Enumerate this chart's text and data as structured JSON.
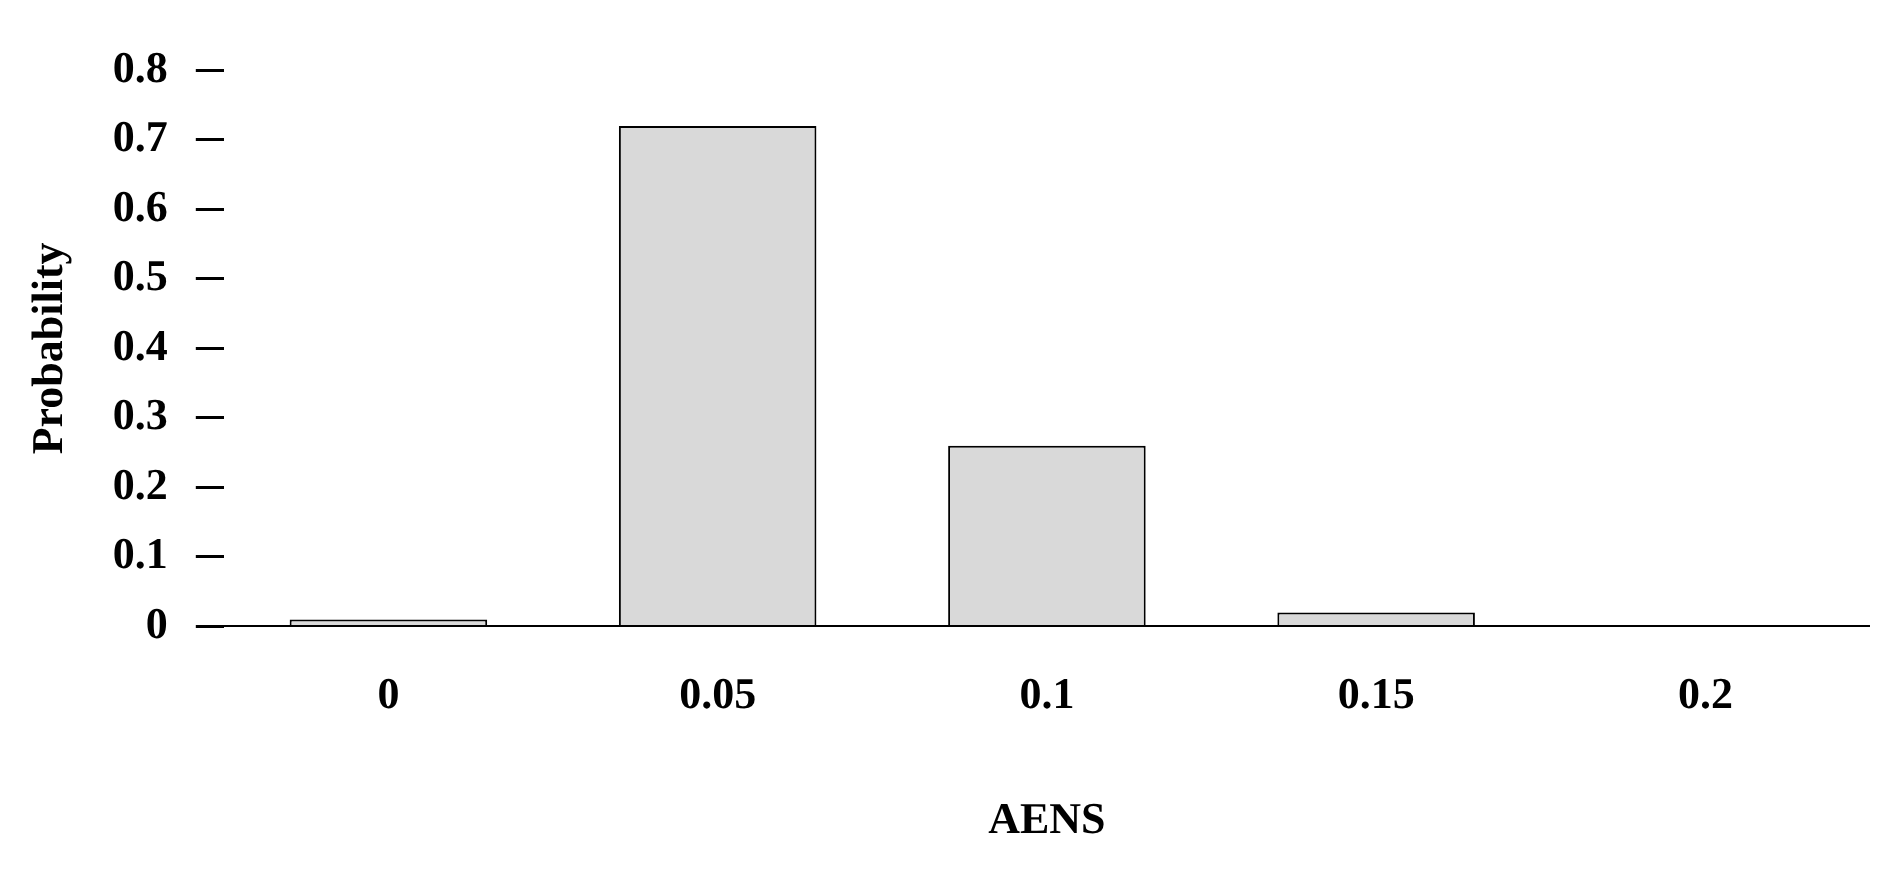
{
  "chart_data": {
    "type": "bar",
    "xlabel": "AENS",
    "ylabel": "Probability",
    "categories": [
      "0",
      "0.05",
      "0.1",
      "0.15",
      "0.2"
    ],
    "values": [
      0.01,
      0.72,
      0.26,
      0.02,
      0
    ],
    "color": "#d9d9d9",
    "ylim": [
      0,
      0.8
    ],
    "yticks": [
      0,
      0.1,
      0.2,
      0.3,
      0.4,
      0.5,
      0.6,
      0.7,
      0.8
    ],
    "grid": false,
    "legend": false
  }
}
